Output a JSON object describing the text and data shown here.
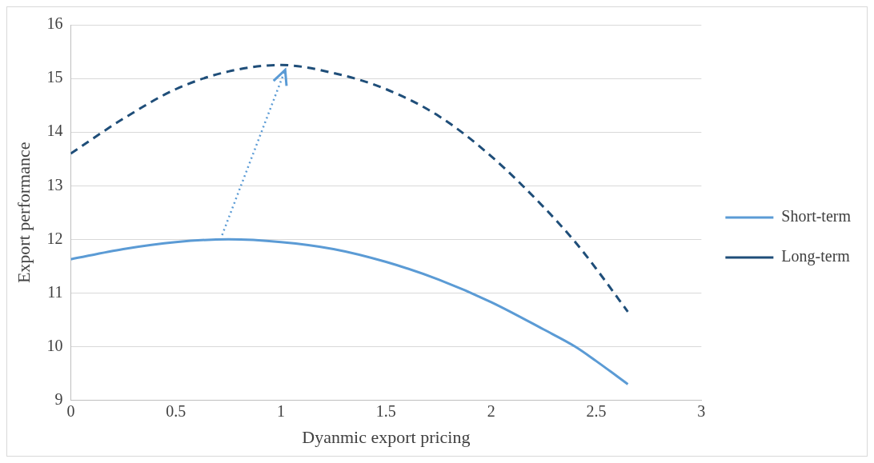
{
  "chart_data": {
    "type": "line",
    "xlabel": "Dyanmic export pricing",
    "ylabel": "Export performance",
    "xlim": [
      0,
      3
    ],
    "xticks": [
      0,
      0.5,
      1,
      1.5,
      2,
      2.5,
      3
    ],
    "ylim": [
      9,
      16
    ],
    "yticks": [
      9,
      10,
      11,
      12,
      13,
      14,
      15,
      16
    ],
    "grid": "y",
    "legend": "right",
    "marker": "none",
    "x": [
      0,
      0.25,
      0.5,
      0.75,
      1,
      1.25,
      1.5,
      1.75,
      2,
      2.25,
      2.4,
      2.5,
      2.65
    ],
    "series": [
      {
        "name": "Short-term",
        "color": "#5b9bd5",
        "line_style": "solid",
        "values": [
          11.63,
          11.82,
          11.95,
          12.0,
          11.95,
          11.82,
          11.58,
          11.25,
          10.83,
          10.32,
          10.0,
          9.73,
          9.3
        ]
      },
      {
        "name": "Long-term",
        "color": "#1f4e79",
        "line_style": "dashed",
        "values": [
          13.6,
          14.25,
          14.8,
          15.13,
          15.25,
          15.1,
          14.8,
          14.3,
          13.55,
          12.6,
          11.95,
          11.45,
          10.65
        ]
      }
    ]
  }
}
